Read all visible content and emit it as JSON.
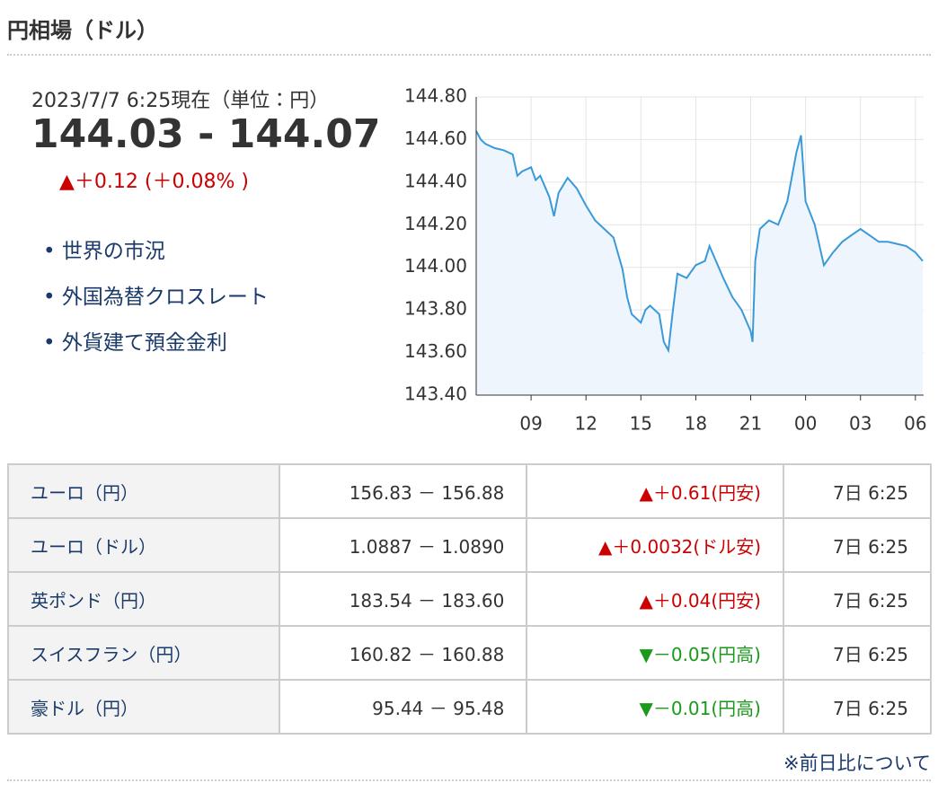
{
  "header": {
    "title": "円相場（ドル）"
  },
  "quote": {
    "timestamp": "2023/7/7 6:25現在（単位：円）",
    "rate": "144.03 - 144.07",
    "change": "▲＋0.12 (＋0.08% )",
    "change_color": "#cc0000"
  },
  "links": [
    "世界の市況",
    "外国為替クロスレート",
    "外貨建て預金金利"
  ],
  "chart_data": {
    "type": "line",
    "color": "#3a9ad9",
    "fill": "#eef5fc",
    "grid": true,
    "x": [
      6,
      6.25,
      6.5,
      7,
      7.5,
      8,
      8.25,
      8.5,
      9,
      9.25,
      9.5,
      10,
      10.25,
      10.5,
      11,
      11.5,
      12,
      12.5,
      13,
      13.5,
      14,
      14.25,
      14.5,
      15,
      15.25,
      15.5,
      16,
      16.25,
      16.5,
      16.75,
      17,
      17.5,
      18,
      18.5,
      18.75,
      19,
      19.5,
      20,
      20.5,
      21,
      21.1,
      21.25,
      21.5,
      22,
      22.5,
      23,
      23.5,
      23.75,
      24,
      24.5,
      25,
      25.5,
      26,
      26.5,
      27,
      27.5,
      28,
      28.5,
      29,
      29.5,
      30,
      30.4
    ],
    "values": [
      144.64,
      144.6,
      144.58,
      144.56,
      144.55,
      144.53,
      144.43,
      144.45,
      144.47,
      144.41,
      144.43,
      144.33,
      144.24,
      144.35,
      144.42,
      144.37,
      144.29,
      144.22,
      144.18,
      144.14,
      143.99,
      143.86,
      143.78,
      143.74,
      143.8,
      143.82,
      143.78,
      143.65,
      143.61,
      143.8,
      143.97,
      143.95,
      144.01,
      144.03,
      144.1,
      144.05,
      143.95,
      143.86,
      143.8,
      143.7,
      143.65,
      144.03,
      144.18,
      144.22,
      144.2,
      144.31,
      144.54,
      144.62,
      144.31,
      144.2,
      144.01,
      144.07,
      144.12,
      144.15,
      144.18,
      144.15,
      144.12,
      144.12,
      144.11,
      144.1,
      144.07,
      144.03
    ],
    "xlim": [
      6,
      30.45
    ],
    "xticks": [
      {
        "value": 9,
        "label": "09"
      },
      12,
      15,
      18,
      21,
      {
        "value": 24,
        "label": "00"
      },
      {
        "value": 27,
        "label": "03"
      },
      {
        "value": 30,
        "label": "06"
      }
    ],
    "ylim": [
      143.4,
      144.8
    ],
    "yticks": [
      {
        "value": 143.4,
        "label": "143.40"
      },
      {
        "value": 143.6,
        "label": "143.60"
      },
      {
        "value": 143.8,
        "label": "143.80"
      },
      {
        "value": 144,
        "label": "144.00"
      },
      {
        "value": 144.2,
        "label": "144.20"
      },
      {
        "value": 144.4,
        "label": "144.40"
      },
      {
        "value": 144.6,
        "label": "144.60"
      },
      {
        "value": 144.8,
        "label": "144.80"
      }
    ]
  },
  "table": {
    "rows": [
      {
        "name": "ユーロ（円）",
        "rate": "156.83 － 156.88",
        "change": "▲＋0.61(円安)",
        "change_color": "#cc0000",
        "time": "7日 6:25"
      },
      {
        "name": "ユーロ（ドル）",
        "rate": "1.0887 － 1.0890",
        "change": "▲＋0.0032(ドル安)",
        "change_color": "#cc0000",
        "time": "7日 6:25"
      },
      {
        "name": "英ポンド（円）",
        "rate": "183.54 － 183.60",
        "change": "▲＋0.04(円安)",
        "change_color": "#cc0000",
        "time": "7日 6:25"
      },
      {
        "name": "スイスフラン（円）",
        "rate": "160.82 － 160.88",
        "change": "▼－0.05(円高)",
        "change_color": "#1a9a1a",
        "time": "7日 6:25"
      },
      {
        "name": "豪ドル（円）",
        "rate": "95.44 － 95.48",
        "change": "▼－0.01(円高)",
        "change_color": "#1a9a1a",
        "time": "7日 6:25"
      }
    ]
  },
  "footer": {
    "link": "※前日比について"
  }
}
